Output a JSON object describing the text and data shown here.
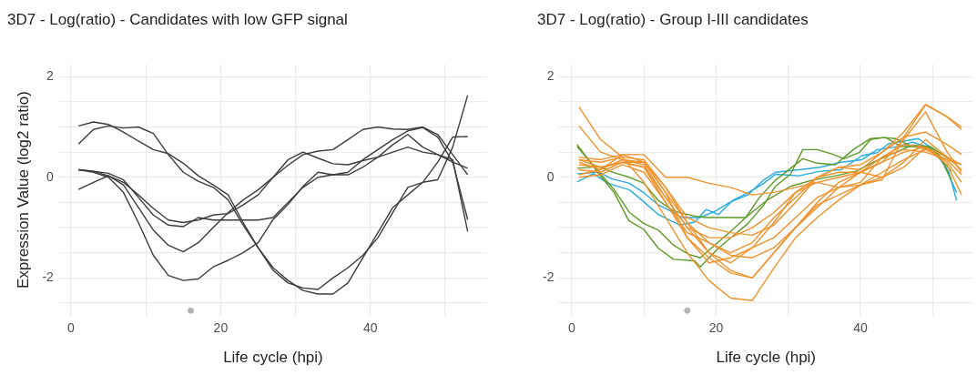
{
  "chart_data": [
    {
      "type": "line",
      "title": "3D7 - Log(ratio) - Candidates with low GFP signal",
      "xlabel": "Life cycle (hpi)",
      "ylabel": "Expression Value (log2 ratio)",
      "grid": true,
      "xlim": [
        -1.6,
        55.6
      ],
      "ylim": [
        -2.75,
        2.25
      ],
      "xticks": [
        0,
        {
          "value": 10,
          "label": null
        },
        20,
        {
          "value": 30,
          "label": null
        },
        40,
        {
          "value": 50,
          "label": null
        }
      ],
      "yticks": [
        {
          "value": -2.5,
          "label": null
        },
        -2,
        {
          "value": -1.5,
          "label": null
        },
        {
          "value": -1,
          "label": null
        },
        {
          "value": -0.5,
          "label": null
        },
        0,
        {
          "value": 0.5,
          "label": null
        },
        {
          "value": 1,
          "label": null
        },
        {
          "value": 1.5,
          "label": null
        },
        2
      ],
      "x": [
        1,
        3,
        5,
        7,
        9,
        11,
        13,
        15,
        17,
        19,
        21,
        23,
        25,
        27,
        29,
        31,
        33,
        35,
        37,
        39,
        41,
        43,
        45,
        47,
        49,
        51,
        53
      ],
      "series": [
        {
          "color": "#3d3d3d",
          "values": [
            1.02,
            1.1,
            1.05,
            0.9,
            0.72,
            0.55,
            0.47,
            0.28,
            0.03,
            -0.15,
            -0.35,
            -0.9,
            -1.4,
            -1.85,
            -2.1,
            -2.2,
            -2.23,
            -2.0,
            -1.8,
            -1.55,
            -1.2,
            -0.7,
            -0.2,
            -0.1,
            -0.05,
            0.6,
            1.63
          ]
        },
        {
          "color": "#3d3d3d",
          "values": [
            0.66,
            0.95,
            1.02,
            0.98,
            1.0,
            0.87,
            0.45,
            0.1,
            -0.08,
            -0.2,
            -0.45,
            -0.95,
            -1.4,
            -1.8,
            -2.05,
            -2.25,
            -2.32,
            -2.32,
            -2.1,
            -1.6,
            -1.1,
            -0.6,
            -0.35,
            -0.1,
            0.3,
            0.8,
            0.81
          ]
        },
        {
          "color": "#3d3d3d",
          "values": [
            0.15,
            0.1,
            0.0,
            -0.3,
            -0.9,
            -1.55,
            -1.95,
            -2.05,
            -2.02,
            -1.78,
            -1.65,
            -1.5,
            -1.3,
            -0.84,
            -0.54,
            -0.18,
            0.1,
            0.05,
            0.1,
            0.35,
            0.55,
            0.75,
            0.92,
            0.99,
            0.8,
            0.3,
            -0.84
          ]
        },
        {
          "color": "#3d3d3d",
          "values": [
            0.15,
            0.12,
            0.03,
            -0.15,
            -0.6,
            -1.05,
            -1.35,
            -1.48,
            -1.3,
            -1.0,
            -0.7,
            -0.45,
            -0.25,
            0.0,
            0.24,
            0.45,
            0.52,
            0.55,
            0.75,
            0.95,
            1.0,
            0.96,
            0.95,
            1.0,
            0.85,
            0.45,
            0.05
          ]
        },
        {
          "color": "#3d3d3d",
          "values": [
            -0.24,
            -0.1,
            0.03,
            -0.1,
            -0.35,
            -0.62,
            -0.85,
            -0.9,
            -0.85,
            -0.75,
            -0.72,
            -0.55,
            -0.35,
            0.0,
            0.35,
            0.5,
            0.38,
            0.27,
            0.25,
            0.33,
            0.4,
            0.5,
            0.6,
            0.5,
            0.45,
            0.3,
            0.18
          ]
        },
        {
          "color": "#3d3d3d",
          "values": [
            0.15,
            0.12,
            0.08,
            -0.05,
            -0.4,
            -0.75,
            -0.95,
            -0.98,
            -0.8,
            -0.85,
            -0.85,
            -0.85,
            -0.85,
            -0.8,
            -0.5,
            -0.2,
            0.0,
            0.05,
            0.05,
            0.2,
            0.4,
            0.65,
            0.85,
            0.6,
            0.45,
            0.35,
            -1.08
          ]
        },
        {
          "type": "scatter",
          "color": "#b3b3b3",
          "x": [
            16
          ],
          "values": [
            -2.65
          ]
        }
      ]
    },
    {
      "type": "line",
      "title": "3D7 - Log(ratio) - Group I-III candidates",
      "xlabel": "Life cycle (hpi)",
      "grid": true,
      "xlim": [
        -1.7,
        55.5
      ],
      "ylim": [
        -2.75,
        2.25
      ],
      "xticks": [
        0,
        {
          "value": 10,
          "label": null
        },
        20,
        {
          "value": 30,
          "label": null
        },
        40,
        {
          "value": 50,
          "label": null
        }
      ],
      "yticks": [
        {
          "value": -2.5,
          "label": null
        },
        -2,
        {
          "value": -1.5,
          "label": null
        },
        {
          "value": -1,
          "label": null
        },
        {
          "value": -0.5,
          "label": null
        },
        0,
        {
          "value": 0.5,
          "label": null
        },
        {
          "value": 1,
          "label": null
        },
        {
          "value": 1.5,
          "label": null
        },
        2
      ],
      "x": [
        1,
        4,
        7,
        10,
        13,
        16,
        19,
        22,
        25,
        28,
        31,
        34,
        37,
        40,
        43,
        46,
        49,
        52,
        54
      ],
      "series": [
        {
          "color": "#f0922b",
          "values": [
            1.4,
            0.75,
            0.4,
            -0.1,
            -0.8,
            -1.5,
            -2.05,
            -2.4,
            -2.45,
            -1.8,
            -1.2,
            -0.8,
            -0.45,
            -0.15,
            -0.05,
            0.8,
            1.44,
            1.2,
            1.0
          ]
        },
        {
          "color": "#f0922b",
          "values": [
            1.02,
            0.5,
            0.35,
            0.3,
            -0.3,
            -0.9,
            -1.5,
            -1.85,
            -2.0,
            -1.5,
            -1.0,
            -0.5,
            -0.1,
            0.1,
            0.3,
            0.75,
            1.3,
            0.5,
            0.1
          ]
        },
        {
          "color": "#f0922b",
          "values": [
            0.4,
            0.35,
            0.45,
            0.45,
            0.0,
            0.0,
            -0.12,
            -0.2,
            -0.35,
            -0.3,
            -0.2,
            -0.1,
            0.0,
            0.1,
            0.3,
            0.5,
            0.6,
            0.4,
            0.25
          ]
        },
        {
          "color": "#f0922b",
          "values": [
            0.35,
            0.3,
            0.4,
            0.35,
            -0.2,
            -0.9,
            -1.3,
            -1.5,
            -1.3,
            -0.8,
            -0.4,
            0.0,
            0.2,
            0.25,
            0.5,
            0.9,
            1.45,
            1.2,
            0.95
          ]
        },
        {
          "color": "#f0922b",
          "values": [
            0.3,
            0.15,
            0.35,
            0.25,
            -0.4,
            -1.0,
            -1.2,
            -1.2,
            -1.0,
            -0.7,
            -0.3,
            0.0,
            0.2,
            0.15,
            0.5,
            0.8,
            0.9,
            0.65,
            0.45
          ]
        },
        {
          "color": "#f0922b",
          "values": [
            0.15,
            0.1,
            0.3,
            0.2,
            -0.5,
            -1.2,
            -1.6,
            -1.9,
            -2.0,
            -1.5,
            -1.0,
            -0.6,
            -0.2,
            -0.1,
            0.4,
            0.65,
            0.6,
            0.3,
            -0.1
          ]
        },
        {
          "color": "#f0922b",
          "values": [
            0.05,
            0.15,
            0.45,
            0.3,
            -0.3,
            -1.2,
            -1.7,
            -1.6,
            -1.4,
            -1.2,
            -0.8,
            -0.4,
            -0.2,
            0.1,
            0.4,
            0.55,
            0.5,
            0.35,
            0.25
          ]
        },
        {
          "color": "#f0922b",
          "values": [
            0.0,
            0.05,
            0.25,
            0.1,
            -0.5,
            -1.1,
            -1.3,
            -1.55,
            -1.6,
            -1.4,
            -1.0,
            -0.55,
            -0.35,
            -0.15,
            0.0,
            0.3,
            0.75,
            0.4,
            0.15
          ]
        },
        {
          "color": "#f0922b",
          "values": [
            0.25,
            0.2,
            0.3,
            0.3,
            -0.2,
            -0.8,
            -1.0,
            -1.1,
            -1.15,
            -0.95,
            -0.5,
            0.0,
            0.1,
            0.1,
            0.0,
            0.2,
            0.6,
            0.25,
            -0.35
          ]
        },
        {
          "color": "#f0922b",
          "values": [
            0.35,
            0.2,
            0.3,
            0.2,
            -0.4,
            -1.0,
            -1.5,
            -1.7,
            -1.4,
            -0.9,
            -0.3,
            -0.1,
            -0.2,
            -0.15,
            0.1,
            0.35,
            0.55,
            0.35,
            0.05
          ]
        },
        {
          "color": "#5e9a26",
          "x": [
            0.75,
            3.8,
            5.9,
            7.9,
            10,
            12,
            14.1,
            17,
            17.8,
            20.3,
            22.3,
            24.4,
            26.6,
            28.2,
            30.3,
            32,
            34,
            36.1,
            37.7,
            39.8,
            41.4,
            43.1,
            44.8,
            47.2,
            49.3,
            51,
            52.6
          ],
          "values": [
            0.65,
            0.06,
            -0.31,
            -0.86,
            -1.04,
            -1.41,
            -1.63,
            -1.66,
            -1.78,
            -1.41,
            -1.17,
            -0.92,
            -0.55,
            -0.18,
            0.06,
            0.55,
            0.55,
            0.46,
            0.37,
            0.49,
            0.75,
            0.79,
            0.77,
            0.61,
            0.61,
            0.43,
            -0.06
          ]
        },
        {
          "color": "#5e9a26",
          "x": [
            0.75,
            3.8,
            5.9,
            8,
            10,
            12,
            14.1,
            17,
            18.6,
            24.1,
            26,
            28.2,
            32,
            34,
            36.5,
            39,
            41.4,
            43.5,
            45.6,
            47.6,
            49.7,
            51.4,
            52.6
          ],
          "values": [
            0.18,
            0.21,
            0.09,
            0,
            -0.12,
            -0.46,
            -0.67,
            -0.77,
            -0.8,
            -0.8,
            -0.4,
            -0.06,
            0.37,
            0.28,
            0.25,
            0.55,
            0.77,
            0.79,
            0.61,
            0.61,
            0.55,
            0.31,
            0.12
          ]
        },
        {
          "color": "#5e9a26",
          "x": [
            0.75,
            3.8,
            5.9,
            8,
            10,
            12,
            14.1,
            16.2,
            17.8,
            20.3,
            22.3,
            24.1,
            27,
            30.3,
            33.2,
            36.5,
            39.4,
            41.9,
            44.8,
            47.2,
            49.7,
            52.2
          ],
          "values": [
            0.61,
            0.1,
            -0.25,
            -0.7,
            -0.92,
            -1.05,
            -1.35,
            -1.53,
            -1.6,
            -1.29,
            -1.04,
            -0.8,
            -0.46,
            -0.18,
            -0.06,
            0.03,
            0.12,
            0.31,
            0.49,
            0.64,
            0.61,
            0.37
          ]
        },
        {
          "color": "#29abe2",
          "x": [
            0.75,
            3,
            5,
            8,
            10,
            12,
            13.7,
            15,
            17,
            18.6,
            20.3,
            22.3,
            24.4,
            26.6,
            28.2,
            31.5,
            34.4,
            37.3,
            40.2,
            42.3,
            43.9,
            45.6,
            48,
            50.1,
            52.2,
            53.3
          ],
          "values": [
            -0.09,
            0.07,
            -0.12,
            -0.25,
            -0.49,
            -0.74,
            -0.86,
            -0.95,
            -0.89,
            -0.64,
            -0.74,
            -0.46,
            -0.31,
            -0.12,
            0.06,
            0.03,
            0.12,
            0.15,
            0.43,
            0.49,
            0.67,
            0.71,
            0.77,
            0.55,
            0.12,
            -0.46
          ]
        },
        {
          "color": "#29abe2",
          "x": [
            0.75,
            3.8,
            5.5,
            8,
            10,
            12,
            13.7,
            15.3,
            17.8,
            19.9,
            22,
            24.4,
            26.6,
            28.2,
            31.5,
            34.4,
            37.3,
            40.2,
            42.3,
            44.8,
            47.2,
            49.3,
            51.4,
            53.3
          ],
          "values": [
            0.07,
            0.1,
            -0.03,
            -0.12,
            -0.31,
            -0.55,
            -0.67,
            -0.8,
            -0.8,
            -0.67,
            -0.49,
            -0.35,
            -0.05,
            0.1,
            0.15,
            0.2,
            0.3,
            0.35,
            0.55,
            0.6,
            0.7,
            0.6,
            0.3,
            -0.3
          ]
        },
        {
          "type": "scatter",
          "color": "#b3b3b3",
          "x": [
            16
          ],
          "values": [
            -2.65
          ]
        }
      ]
    }
  ]
}
